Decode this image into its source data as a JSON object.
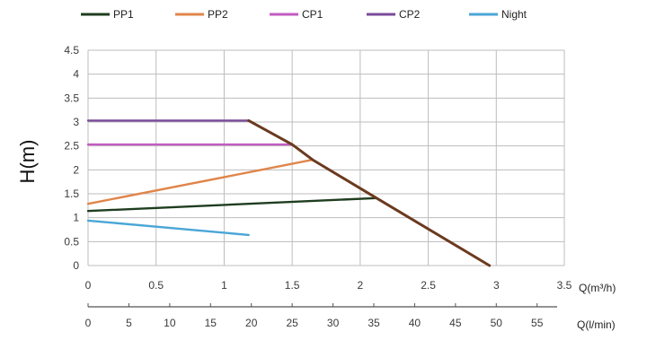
{
  "chart_data": {
    "type": "line",
    "ylabel": "H(m)",
    "xlabel": "Q(m³/h)",
    "x2label": "Q(l/min)",
    "ylim": [
      0,
      4.5
    ],
    "xlim": [
      0,
      3.5
    ],
    "yticks": [
      "0",
      "0.5",
      "1",
      "1.5",
      "2",
      "2.5",
      "3",
      "3.5",
      "4",
      "4.5"
    ],
    "xticks": [
      "0",
      "0.5",
      "1",
      "1.5",
      "2",
      "2.5",
      "3",
      "3.5"
    ],
    "x2ticks": [
      "0",
      "5",
      "10",
      "15",
      "20",
      "25",
      "30",
      "35",
      "40",
      "45",
      "50",
      "55"
    ],
    "grid": true,
    "legend_position": "top",
    "series": [
      {
        "name": "PP1",
        "color": "#1f3d1f",
        "x": [
          0,
          2.12
        ],
        "y": [
          1.14,
          1.41
        ]
      },
      {
        "name": "PP2",
        "color": "#e0854a",
        "x": [
          0,
          1.65
        ],
        "y": [
          1.29,
          2.21
        ]
      },
      {
        "name": "CP1",
        "color": "#c25bc2",
        "x": [
          0,
          1.5
        ],
        "y": [
          2.53,
          2.53
        ]
      },
      {
        "name": "CP2",
        "color": "#7a4a9a",
        "x": [
          0,
          1.18
        ],
        "y": [
          3.03,
          3.03
        ]
      },
      {
        "name": "Night",
        "color": "#4aa6d6",
        "x": [
          0,
          1.18
        ],
        "y": [
          0.94,
          0.64
        ]
      }
    ],
    "envelope": {
      "color": "#6b3a1f",
      "x": [
        1.18,
        1.5,
        1.65,
        2.12,
        2.95
      ],
      "y": [
        3.03,
        2.53,
        2.21,
        1.41,
        0
      ]
    }
  }
}
